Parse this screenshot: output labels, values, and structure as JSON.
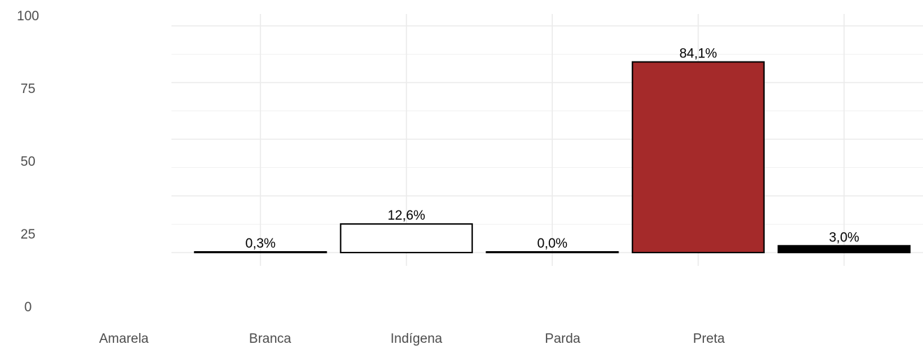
{
  "chart_data": {
    "type": "bar",
    "title": "",
    "xlabel": "",
    "ylabel": "",
    "ylim": [
      0,
      100
    ],
    "yticks": [
      0,
      25,
      50,
      75,
      100
    ],
    "categories": [
      "Amarela",
      "Branca",
      "Indígena",
      "Parda",
      "Preta"
    ],
    "values": [
      0.3,
      12.6,
      0.0,
      84.1,
      3.0
    ],
    "labels": [
      "0,3%",
      "12,6%",
      "0,0%",
      "84,1%",
      "3,0%"
    ],
    "colors": [
      "#ffffff",
      "#ffffff",
      "#ffffff",
      "#a52a2a",
      "#000000"
    ],
    "grid": true,
    "legend": "none"
  }
}
